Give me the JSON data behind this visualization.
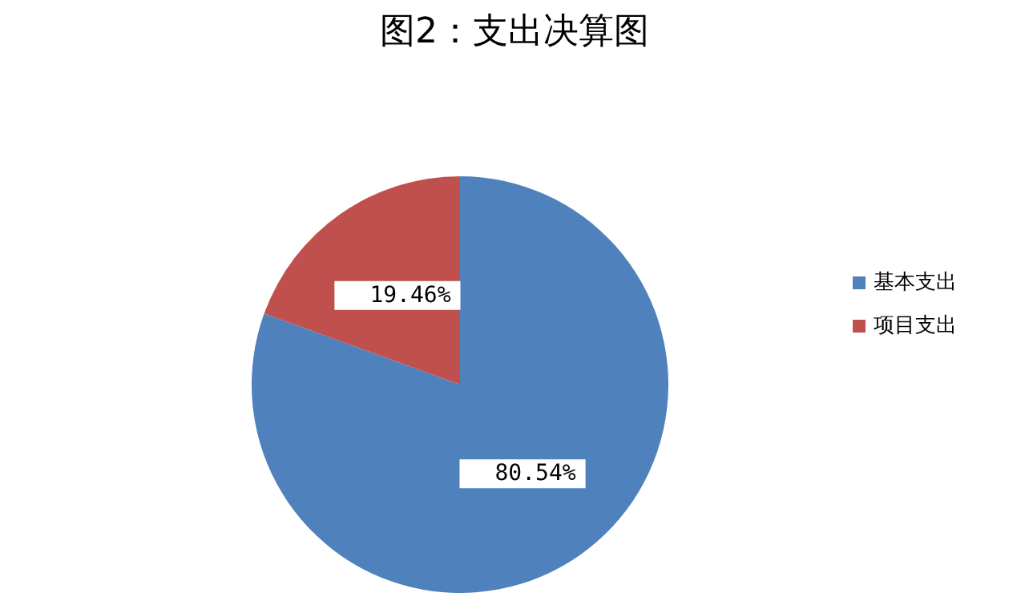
{
  "chart_data": {
    "type": "pie",
    "title": "图2：支出决算图",
    "categories": [
      "基本支出",
      "项目支出"
    ],
    "values": [
      80.54,
      19.46
    ],
    "colors": [
      "#4f81bd",
      "#c0504d"
    ],
    "value_labels": [
      "80.54%",
      "19.46%"
    ],
    "legend": "right"
  }
}
